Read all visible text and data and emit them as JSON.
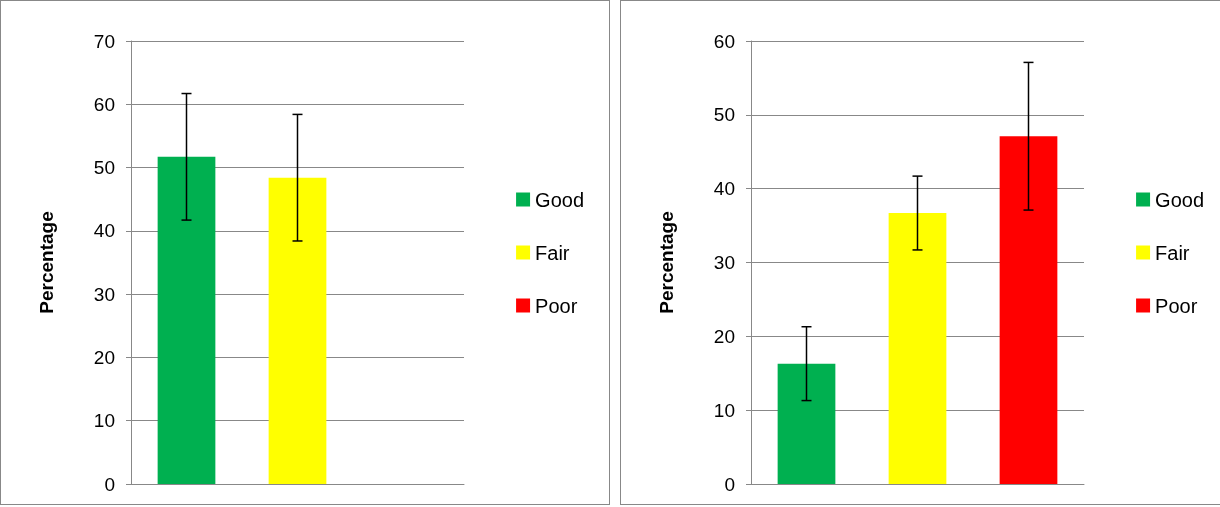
{
  "chart_data": [
    {
      "type": "bar",
      "ylabel": "Percentage",
      "categories": [
        null,
        null,
        null
      ],
      "ylim": [
        0,
        70
      ],
      "yticks": [
        0,
        10,
        20,
        30,
        40,
        50,
        60,
        70
      ],
      "grid": "y",
      "legend": "right",
      "series": [
        {
          "name": "Good",
          "color": "#00b050",
          "values": [
            51.7,
            null,
            null
          ],
          "errors": [
            10,
            null,
            null
          ]
        },
        {
          "name": "Fair",
          "color": "#ffff00",
          "values": [
            null,
            48.4,
            null
          ],
          "errors": [
            null,
            10,
            null
          ]
        },
        {
          "name": "Poor",
          "color": "#ff0000",
          "values": [
            null,
            null,
            null
          ]
        }
      ]
    },
    {
      "type": "bar",
      "ylabel": "Percentage",
      "categories": [
        null,
        null,
        null
      ],
      "ylim": [
        0,
        60
      ],
      "yticks": [
        0,
        10,
        20,
        30,
        40,
        50,
        60
      ],
      "grid": "y",
      "legend": "right",
      "series": [
        {
          "name": "Good",
          "color": "#00b050",
          "values": [
            16.3,
            null,
            null
          ],
          "errors": [
            5,
            null,
            null
          ]
        },
        {
          "name": "Fair",
          "color": "#ffff00",
          "values": [
            null,
            36.7,
            null
          ],
          "errors": [
            null,
            5,
            null
          ]
        },
        {
          "name": "Poor",
          "color": "#ff0000",
          "values": [
            null,
            null,
            47.1
          ],
          "errors": [
            null,
            null,
            10
          ]
        }
      ]
    }
  ]
}
